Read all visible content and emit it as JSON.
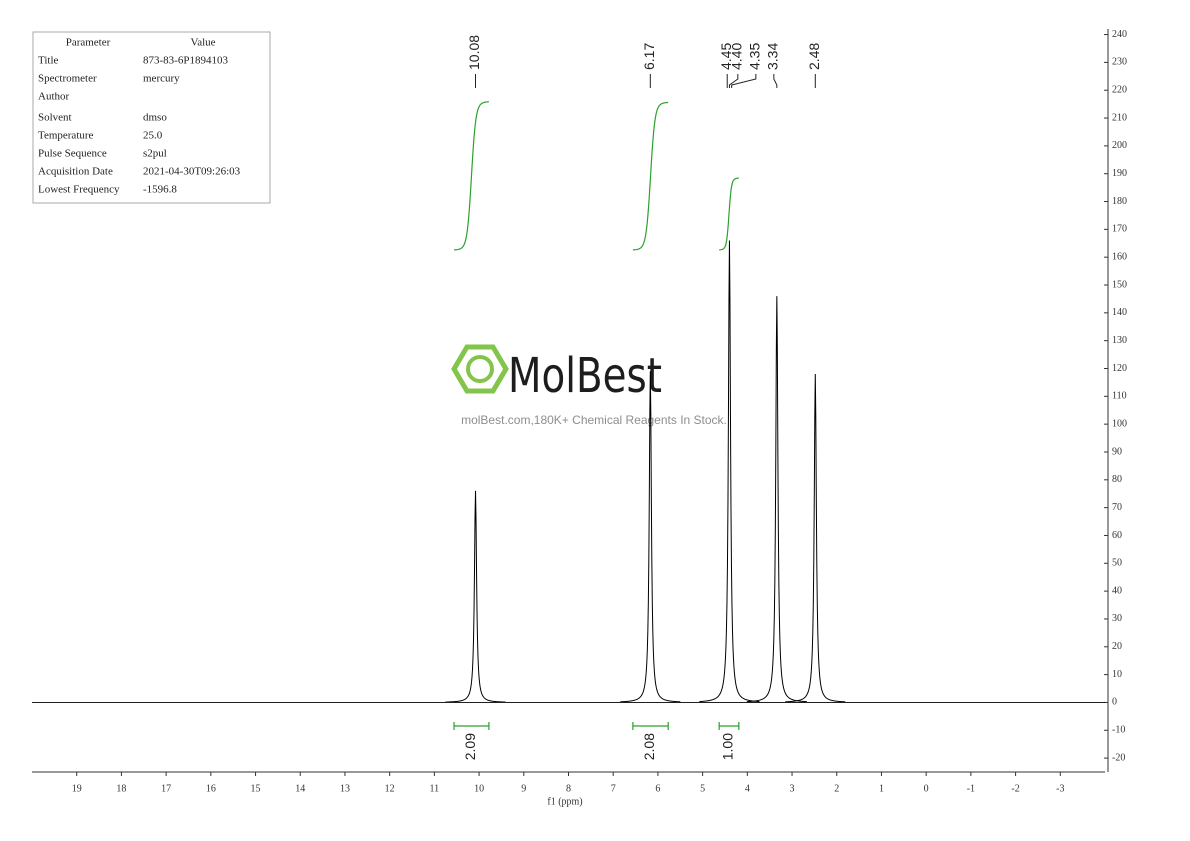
{
  "parameters": {
    "header": [
      "Parameter",
      "Value"
    ],
    "rows": [
      [
        "Title",
        "873-83-6P1894103"
      ],
      [
        "Spectrometer",
        "mercury"
      ],
      [
        "Author"
      ],
      [
        "Solvent",
        "dmso"
      ],
      [
        "Temperature",
        "25.0"
      ],
      [
        "Pulse Sequence",
        "s2pul"
      ],
      [
        "Acquisition Date",
        "2021-04-30T09:26:03"
      ],
      [
        "Lowest Frequency",
        "-1596.8"
      ]
    ]
  },
  "chart_data": {
    "type": "spectrum",
    "x_label": "f1 (ppm)",
    "color": "#000000",
    "xlim": [
      20,
      -4
    ],
    "ylim": [
      -25,
      242
    ],
    "xticks": [
      19,
      18,
      17,
      16,
      15,
      14,
      13,
      12,
      11,
      10,
      9,
      8,
      7,
      6,
      5,
      4,
      3,
      2,
      1,
      0,
      -1,
      -2,
      -3
    ],
    "yticks": [
      -20,
      -10,
      0,
      10,
      20,
      30,
      40,
      50,
      60,
      70,
      80,
      90,
      100,
      110,
      120,
      130,
      140,
      150,
      160,
      170,
      180,
      190,
      200,
      210,
      220,
      230,
      240
    ],
    "peaks": {
      "x": [
        10.08,
        6.17,
        4.4,
        3.34,
        2.48
      ],
      "values": [
        76,
        119,
        166,
        146,
        118
      ]
    },
    "peak_labels": {
      "values": [
        10.08,
        6.17,
        4.45,
        4.4,
        4.35,
        3.34,
        2.48
      ],
      "value_labels": [
        "10.08",
        "6.17",
        "4.45",
        "4.40",
        "4.35",
        "3.34",
        "2.48"
      ]
    },
    "integrals": {
      "color": "#2ca02c",
      "ranges": [
        [
          10.56,
          9.78
        ],
        [
          6.56,
          5.77
        ],
        [
          4.63,
          4.19
        ]
      ],
      "values": [
        2.09,
        2.08,
        1.0
      ],
      "value_labels": [
        "2.09",
        "2.08",
        "1.00"
      ]
    }
  },
  "watermark": {
    "brand": "MolBest",
    "tagline": "molBest.com,180K+ Chemical Reagents In Stock."
  }
}
